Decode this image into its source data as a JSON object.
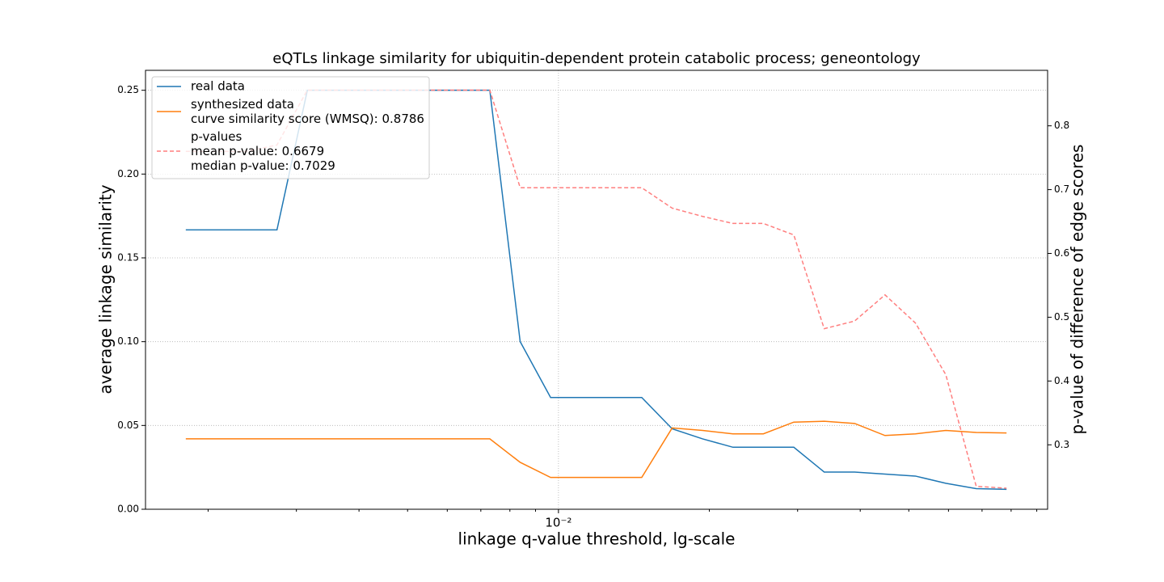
{
  "chart_data": {
    "type": "line",
    "title": "eQTLs linkage similarity for ubiquitin-dependent protein catabolic process; geneontology",
    "xlabel": "linkage q-value threshold, lg-scale",
    "ylabel": "average linkage similarity",
    "y2label": "p-value of difference of edge scores",
    "xscale": "log",
    "x": [
      0.001805,
      0.002075,
      0.002386,
      0.002744,
      0.003155,
      0.003628,
      0.004173,
      0.004797,
      0.005516,
      0.006343,
      0.007295,
      0.008387,
      0.009645,
      0.01109,
      0.01275,
      0.01466,
      0.01686,
      0.01939,
      0.02229,
      0.02563,
      0.02948,
      0.0339,
      0.03898,
      0.04482,
      0.05154,
      0.05926,
      0.06815,
      0.07834
    ],
    "series": [
      {
        "name": "real data",
        "color": "#1f77b4",
        "dashed": false,
        "values": [
          0.1667,
          0.1667,
          0.1667,
          0.1667,
          0.25,
          0.25,
          0.25,
          0.25,
          0.25,
          0.25,
          0.25,
          0.1,
          0.0667,
          0.0667,
          0.0667,
          0.0667,
          0.048,
          0.042,
          0.037,
          0.037,
          0.037,
          0.0222,
          0.0222,
          0.021,
          0.0198,
          0.0155,
          0.0123,
          0.0119
        ]
      },
      {
        "name": "synthesized data\ncurve similarity score (WMSQ): 0.8786",
        "color": "#ff7f0e",
        "dashed": false,
        "values": [
          0.042,
          0.042,
          0.042,
          0.042,
          0.042,
          0.042,
          0.042,
          0.042,
          0.042,
          0.042,
          0.042,
          0.028,
          0.019,
          0.019,
          0.019,
          0.019,
          0.0485,
          0.047,
          0.045,
          0.045,
          0.052,
          0.0525,
          0.0512,
          0.044,
          0.045,
          0.047,
          0.0458,
          0.0455
        ]
      },
      {
        "name": "p-values\nmean p-value: 0.6679\nmedian p-value: 0.7029",
        "color": "#ff7f7f",
        "dashed": true,
        "axis": "y2",
        "values": [
          0.76,
          0.76,
          0.76,
          0.77,
          0.856,
          0.856,
          0.856,
          0.856,
          0.856,
          0.856,
          0.856,
          0.703,
          0.703,
          0.703,
          0.703,
          0.703,
          0.671,
          0.658,
          0.647,
          0.647,
          0.629,
          0.482,
          0.494,
          0.535,
          0.491,
          0.41,
          0.235,
          0.232
        ]
      }
    ],
    "xlim": [
      0.0015,
      0.0946
    ],
    "xticks": [
      {
        "value": 0.01,
        "label": "10⁻²"
      }
    ],
    "xminorticks": [
      0.002,
      0.003,
      0.004,
      0.005,
      0.006,
      0.007,
      0.008,
      0.009,
      0.02,
      0.03,
      0.04,
      0.05,
      0.06,
      0.07,
      0.08,
      0.09
    ],
    "ylim": [
      0,
      0.2619
    ],
    "yticks": [
      {
        "value": 0,
        "label": "0.00"
      },
      {
        "value": 0.05,
        "label": "0.05"
      },
      {
        "value": 0.1,
        "label": "0.10"
      },
      {
        "value": 0.15,
        "label": "0.15"
      },
      {
        "value": 0.2,
        "label": "0.20"
      },
      {
        "value": 0.25,
        "label": "0.25"
      }
    ],
    "y2lim": [
      0.199,
      0.887
    ],
    "y2ticks": [
      0.3,
      0.4,
      0.5,
      0.6,
      0.7,
      0.8
    ],
    "grid": true,
    "legend": "upper left"
  }
}
